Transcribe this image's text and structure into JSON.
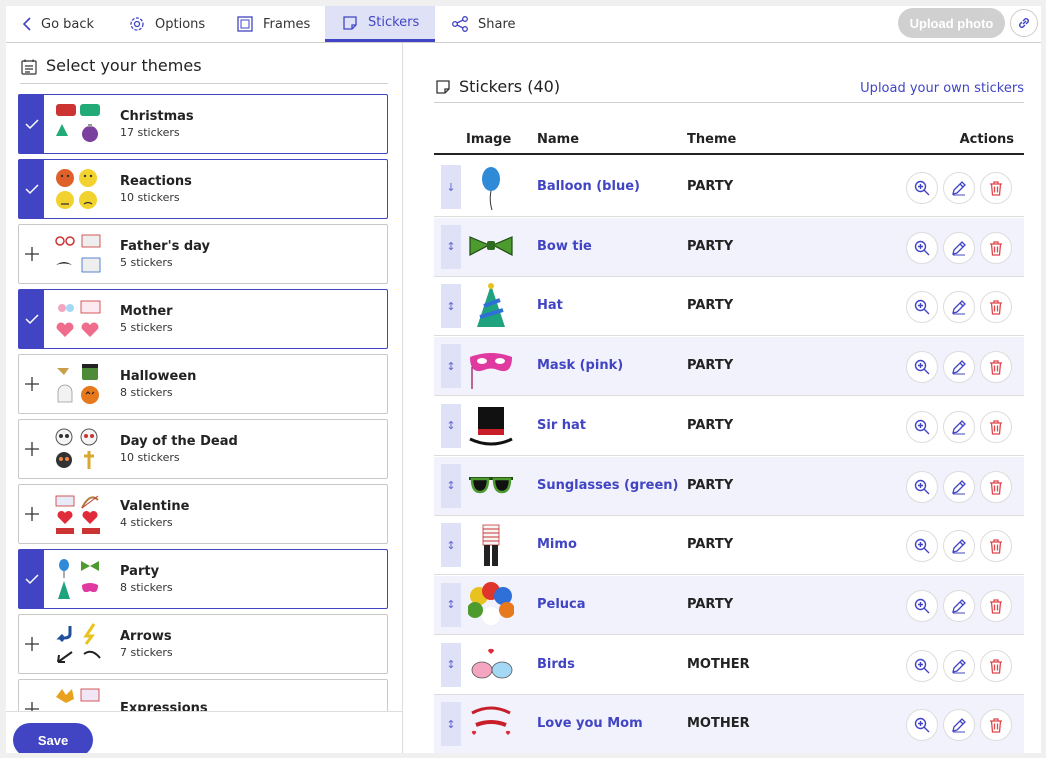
{
  "nav": {
    "go_back": "Go back",
    "options": "Options",
    "frames": "Frames",
    "stickers": "Stickers",
    "share": "Share",
    "upload_photo": "Upload photo"
  },
  "themes_panel": {
    "title": "Select your themes",
    "themes": [
      {
        "name": "Christmas",
        "count": "17 stickers",
        "selected": true
      },
      {
        "name": "Reactions",
        "count": "10 stickers",
        "selected": true
      },
      {
        "name": "Father's day",
        "count": "5 stickers",
        "selected": false
      },
      {
        "name": "Mother",
        "count": "5 stickers",
        "selected": true
      },
      {
        "name": "Halloween",
        "count": "8 stickers",
        "selected": false
      },
      {
        "name": "Day of the Dead",
        "count": "10 stickers",
        "selected": false
      },
      {
        "name": "Valentine",
        "count": "4 stickers",
        "selected": false
      },
      {
        "name": "Party",
        "count": "8 stickers",
        "selected": true
      },
      {
        "name": "Arrows",
        "count": "7 stickers",
        "selected": false
      },
      {
        "name": "Expressions",
        "count": "",
        "selected": false
      }
    ],
    "save_label": "Save"
  },
  "stickers_panel": {
    "title": "Stickers (40)",
    "upload_own": "Upload your own stickers",
    "columns": {
      "image": "Image",
      "name": "Name",
      "theme": "Theme",
      "actions": "Actions"
    },
    "rows": [
      {
        "name": "Balloon (blue)",
        "theme": "PARTY",
        "icon": "balloon-icon",
        "handle": "↓"
      },
      {
        "name": "Bow tie",
        "theme": "PARTY",
        "icon": "bow-tie-icon",
        "handle": "↕"
      },
      {
        "name": "Hat",
        "theme": "PARTY",
        "icon": "party-hat-icon",
        "handle": "↕"
      },
      {
        "name": "Mask (pink)",
        "theme": "PARTY",
        "icon": "mask-icon",
        "handle": "↕"
      },
      {
        "name": "Sir hat",
        "theme": "PARTY",
        "icon": "top-hat-icon",
        "handle": "↕"
      },
      {
        "name": "Sunglasses (green)",
        "theme": "PARTY",
        "icon": "sunglasses-icon",
        "handle": "↕"
      },
      {
        "name": "Mimo",
        "theme": "PARTY",
        "icon": "mime-icon",
        "handle": "↕"
      },
      {
        "name": "Peluca",
        "theme": "PARTY",
        "icon": "clown-wig-icon",
        "handle": "↕"
      },
      {
        "name": "Birds",
        "theme": "MOTHER",
        "icon": "birds-icon",
        "handle": "↕"
      },
      {
        "name": "Love you Mom",
        "theme": "MOTHER",
        "icon": "love-you-mom-icon",
        "handle": "↕"
      }
    ]
  },
  "colors": {
    "accent": "#4145c3",
    "accent_light": "#dfe1f7",
    "delete": "#e0464b",
    "row_alt": "#f1f2fb"
  }
}
